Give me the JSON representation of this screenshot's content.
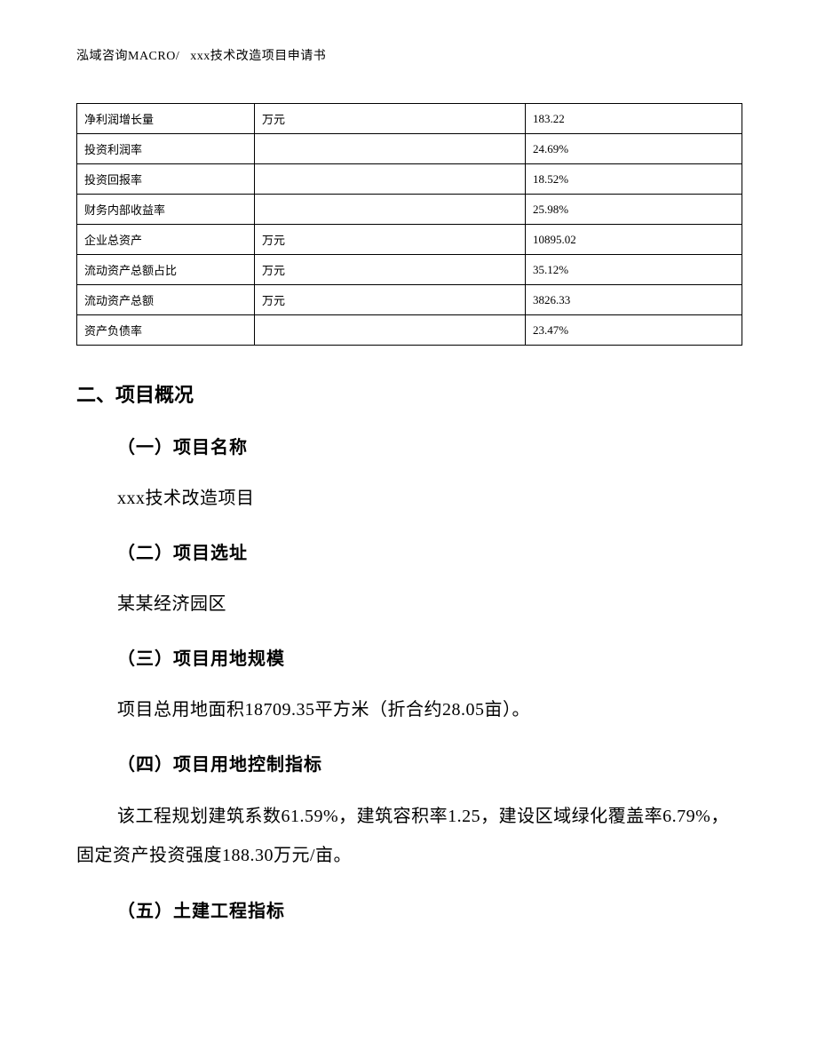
{
  "header": {
    "left": "泓域咨询MACRO/",
    "title": "xxx技术改造项目申请书"
  },
  "table": {
    "col_widths": [
      "200px",
      "305px",
      "auto"
    ],
    "rows": [
      {
        "label": "净利润增长量",
        "unit": "万元",
        "value": "183.22"
      },
      {
        "label": "投资利润率",
        "unit": "",
        "value": "24.69%"
      },
      {
        "label": "投资回报率",
        "unit": "",
        "value": "18.52%"
      },
      {
        "label": "财务内部收益率",
        "unit": "",
        "value": "25.98%"
      },
      {
        "label": "企业总资产",
        "unit": "万元",
        "value": "10895.02"
      },
      {
        "label": "流动资产总额占比",
        "unit": "万元",
        "value": "35.12%"
      },
      {
        "label": "流动资产总额",
        "unit": "万元",
        "value": "3826.33"
      },
      {
        "label": "资产负债率",
        "unit": "",
        "value": "23.47%"
      }
    ]
  },
  "section2": {
    "heading": "二、项目概况",
    "sub1": {
      "title": "（一）项目名称",
      "text": "xxx技术改造项目"
    },
    "sub2": {
      "title": "（二）项目选址",
      "text": "某某经济园区"
    },
    "sub3": {
      "title": "（三）项目用地规模",
      "text": "项目总用地面积18709.35平方米（折合约28.05亩）。"
    },
    "sub4": {
      "title": "（四）项目用地控制指标",
      "text": "该工程规划建筑系数61.59%，建筑容积率1.25，建设区域绿化覆盖率6.79%，固定资产投资强度188.30万元/亩。"
    },
    "sub5": {
      "title": "（五）土建工程指标"
    }
  }
}
